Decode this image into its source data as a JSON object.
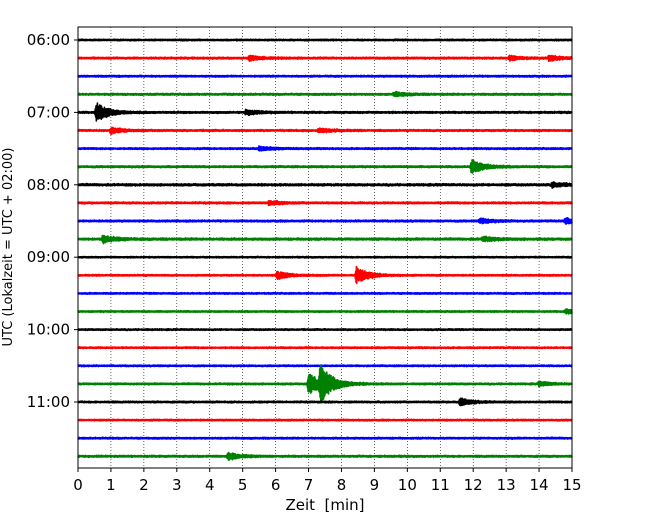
{
  "chart_data": {
    "type": "line",
    "title": "",
    "xlabel": "Zeit  [min]",
    "ylabel": "UTC (Lokalzeit = UTC + 02:00)",
    "xlim": [
      0,
      15
    ],
    "x_ticks": [
      0,
      1,
      2,
      3,
      4,
      5,
      6,
      7,
      8,
      9,
      10,
      11,
      12,
      13,
      14,
      15
    ],
    "x_tick_labels": [
      "0",
      "1",
      "2",
      "3",
      "4",
      "5",
      "6",
      "7",
      "8",
      "9",
      "10",
      "11",
      "12",
      "13",
      "14",
      "15"
    ],
    "y_ticks": [
      "06:00",
      "07:00",
      "08:00",
      "09:00",
      "10:00",
      "11:00"
    ],
    "grid": "vertical dotted at each minute",
    "line_colors": [
      "#000000",
      "#ff0000",
      "#0000ff",
      "#008000"
    ],
    "series": [
      {
        "start": "06:00",
        "color": "#000000",
        "noise": 0.5,
        "events": []
      },
      {
        "start": "06:15",
        "color": "#ff0000",
        "noise": 0.6,
        "events": [
          {
            "x": 5.2,
            "amp": 1.2
          },
          {
            "x": 13.1,
            "amp": 1.0
          },
          {
            "x": 14.3,
            "amp": 1.3
          }
        ]
      },
      {
        "start": "06:30",
        "color": "#0000ff",
        "noise": 0.55,
        "events": []
      },
      {
        "start": "06:45",
        "color": "#008000",
        "noise": 0.6,
        "events": [
          {
            "x": 9.6,
            "amp": 1.0
          }
        ]
      },
      {
        "start": "07:00",
        "color": "#000000",
        "noise": 0.6,
        "events": [
          {
            "x": 0.55,
            "amp": 4.5
          },
          {
            "x": 5.1,
            "amp": 1.2
          }
        ]
      },
      {
        "start": "07:15",
        "color": "#ff0000",
        "noise": 0.6,
        "events": [
          {
            "x": 1.0,
            "amp": 1.4
          },
          {
            "x": 7.3,
            "amp": 1.0
          }
        ]
      },
      {
        "start": "07:30",
        "color": "#0000ff",
        "noise": 0.55,
        "events": [
          {
            "x": 5.5,
            "amp": 1.0
          }
        ]
      },
      {
        "start": "07:45",
        "color": "#008000",
        "noise": 0.6,
        "events": [
          {
            "x": 11.95,
            "amp": 3.2
          }
        ]
      },
      {
        "start": "08:00",
        "color": "#000000",
        "noise": 0.7,
        "events": [
          {
            "x": 14.4,
            "amp": 1.2
          }
        ]
      },
      {
        "start": "08:15",
        "color": "#ff0000",
        "noise": 0.6,
        "events": [
          {
            "x": 5.8,
            "amp": 1.0
          }
        ]
      },
      {
        "start": "08:30",
        "color": "#0000ff",
        "noise": 0.6,
        "events": [
          {
            "x": 12.2,
            "amp": 1.2
          },
          {
            "x": 14.8,
            "amp": 1.3
          }
        ]
      },
      {
        "start": "08:45",
        "color": "#008000",
        "noise": 0.7,
        "events": [
          {
            "x": 0.75,
            "amp": 1.8
          },
          {
            "x": 12.3,
            "amp": 1.0
          }
        ]
      },
      {
        "start": "09:00",
        "color": "#000000",
        "noise": 0.45,
        "events": []
      },
      {
        "start": "09:15",
        "color": "#ff0000",
        "noise": 0.5,
        "events": [
          {
            "x": 6.05,
            "amp": 1.8
          },
          {
            "x": 8.45,
            "amp": 4.0
          }
        ]
      },
      {
        "start": "09:30",
        "color": "#0000ff",
        "noise": 0.5,
        "events": []
      },
      {
        "start": "09:45",
        "color": "#008000",
        "noise": 0.5,
        "events": [
          {
            "x": 14.8,
            "amp": 1.0
          }
        ]
      },
      {
        "start": "10:00",
        "color": "#000000",
        "noise": 0.5,
        "events": []
      },
      {
        "start": "10:15",
        "color": "#ff0000",
        "noise": 0.5,
        "events": []
      },
      {
        "start": "10:30",
        "color": "#0000ff",
        "noise": 0.5,
        "events": []
      },
      {
        "start": "10:45",
        "color": "#008000",
        "noise": 0.55,
        "events": [
          {
            "x": 7.0,
            "amp": 5.0
          },
          {
            "x": 7.35,
            "amp": 7.5
          },
          {
            "x": 14.0,
            "amp": 1.0
          }
        ]
      },
      {
        "start": "11:00",
        "color": "#000000",
        "noise": 0.55,
        "events": [
          {
            "x": 11.6,
            "amp": 1.6
          }
        ]
      },
      {
        "start": "11:15",
        "color": "#ff0000",
        "noise": 0.5,
        "events": []
      },
      {
        "start": "11:30",
        "color": "#0000ff",
        "noise": 0.55,
        "events": []
      },
      {
        "start": "11:45",
        "color": "#008000",
        "noise": 0.6,
        "events": [
          {
            "x": 4.55,
            "amp": 1.6
          }
        ]
      }
    ]
  }
}
